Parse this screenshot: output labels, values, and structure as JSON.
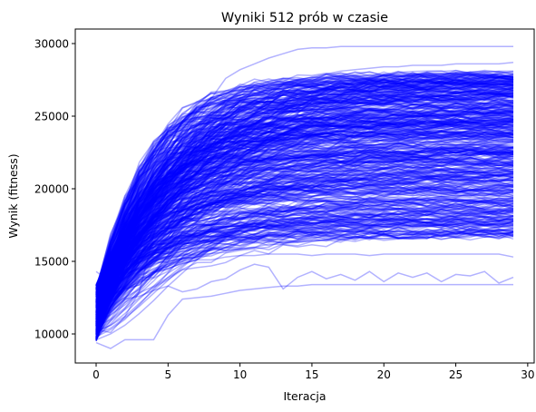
{
  "chart_data": {
    "type": "line",
    "title": "Wyniki 512 prób w czasie",
    "xlabel": "Iteracja",
    "ylabel": "Wynik (fitness)",
    "xlim": [
      -1.45,
      30.45
    ],
    "ylim": [
      8000,
      31000
    ],
    "x_ticks": [
      0,
      5,
      10,
      15,
      20,
      25,
      30
    ],
    "y_ticks": [
      10000,
      15000,
      20000,
      25000,
      30000
    ],
    "x_tick_labels": [
      "0",
      "5",
      "10",
      "15",
      "20",
      "25",
      "30"
    ],
    "y_tick_labels": [
      "10000",
      "15000",
      "20000",
      "25000",
      "30000"
    ],
    "x": [
      0,
      1,
      2,
      3,
      4,
      5,
      6,
      7,
      8,
      9,
      10,
      11,
      12,
      13,
      14,
      15,
      16,
      17,
      18,
      19,
      20,
      21,
      22,
      23,
      24,
      25,
      26,
      27,
      28,
      29
    ],
    "line_color": "#0000ff",
    "line_alpha": 0.3,
    "legend": "none",
    "grid": false,
    "series_count": 512,
    "series_final_value_range": [
      13400,
      29800
    ],
    "series_start_value_range": [
      9100,
      14400
    ],
    "series": [
      {
        "values": [
          10300,
          10100,
          11200,
          12900,
          16800,
          21600,
          23200,
          25200,
          26200,
          27600,
          28200,
          28600,
          29000,
          29300,
          29600,
          29700,
          29700,
          29800,
          29800,
          29800,
          29800,
          29800,
          29800,
          29800,
          29800,
          29800,
          29800,
          29800,
          29800,
          29800
        ]
      },
      {
        "values": [
          9400,
          9000,
          9600,
          9600,
          9600,
          11300,
          12400,
          12500,
          12600,
          12800,
          13000,
          13100,
          13200,
          13300,
          13300,
          13400,
          13400,
          13400,
          13400,
          13400,
          13400,
          13400,
          13400,
          13400,
          13400,
          13400,
          13400,
          13400,
          13400,
          13400
        ]
      },
      {
        "values": [
          11200,
          11600,
          12400,
          12600,
          13000,
          13300,
          12900,
          13100,
          13600,
          13800,
          14400,
          14800,
          14600,
          13100,
          13900,
          14300,
          13800,
          14100,
          13700,
          14300,
          13600,
          14200,
          13900,
          14200,
          13600,
          14100,
          14000,
          14300,
          13500,
          13900
        ]
      },
      {
        "values": [
          10100,
          10600,
          11400,
          12400,
          13300,
          14200,
          14800,
          15100,
          15100,
          15300,
          15400,
          15400,
          15500,
          15500,
          15500,
          15400,
          15500,
          15500,
          15500,
          15400,
          15500,
          15500,
          15500,
          15500,
          15500,
          15500,
          15500,
          15500,
          15500,
          15300
        ]
      },
      {
        "values": [
          14300,
          13600,
          15100,
          16700,
          17600,
          18900,
          19900,
          21000,
          22200,
          23400,
          24300,
          25200,
          26200,
          26800,
          27200,
          27600,
          27900,
          28100,
          28200,
          28300,
          28400,
          28400,
          28500,
          28500,
          28500,
          28600,
          28600,
          28600,
          28600,
          28700
        ]
      },
      {
        "values": [
          12200,
          12500,
          13600,
          14400,
          15600,
          16900,
          18100,
          19300,
          20600,
          21800,
          22700,
          23600,
          24500,
          25300,
          25900,
          26400,
          26800,
          27100,
          27300,
          27500,
          27600,
          27700,
          27800,
          27900,
          27900,
          28000,
          28000,
          28000,
          28100,
          28100
        ]
      },
      {
        "values": [
          11000,
          11500,
          12400,
          13600,
          14800,
          16100,
          17300,
          18500,
          19600,
          20700,
          21700,
          22500,
          23200,
          23800,
          24300,
          24700,
          25100,
          25400,
          25600,
          25800,
          25900,
          26000,
          26100,
          26200,
          26200,
          26300,
          26300,
          26300,
          26400,
          26400
        ]
      },
      {
        "values": [
          10500,
          11000,
          11800,
          13000,
          14200,
          15400,
          16600,
          17700,
          18800,
          19800,
          20700,
          21500,
          22200,
          22800,
          23300,
          23700,
          24000,
          24300,
          24500,
          24700,
          24800,
          24900,
          25000,
          25000,
          25100,
          25100,
          25100,
          25200,
          25200,
          25200
        ]
      },
      {
        "values": [
          9800,
          10300,
          11000,
          12000,
          13100,
          14200,
          15300,
          16300,
          17300,
          18200,
          19000,
          19700,
          20300,
          20800,
          21200,
          21500,
          21700,
          21900,
          22000,
          22100,
          22200,
          22200,
          22300,
          22300,
          22300,
          22300,
          22300,
          22400,
          22400,
          22400
        ]
      },
      {
        "values": [
          10200,
          10600,
          11200,
          12100,
          13000,
          13900,
          14700,
          15400,
          16000,
          16500,
          16900,
          17200,
          17400,
          17600,
          17700,
          17800,
          17800,
          17900,
          17900,
          17900,
          17900,
          17900,
          17900,
          17900,
          17900,
          17900,
          17900,
          17900,
          17900,
          17900
        ]
      },
      {
        "values": [
          9600,
          10000,
          10600,
          11400,
          12300,
          13300,
          14200,
          15100,
          15900,
          16600,
          17200,
          17700,
          18100,
          18400,
          18600,
          18800,
          18900,
          19000,
          19100,
          19100,
          19200,
          19200,
          19200,
          19200,
          19200,
          19200,
          19200,
          19200,
          19200,
          19200
        ]
      },
      {
        "values": [
          11800,
          12300,
          13200,
          14300,
          15500,
          16700,
          17900,
          19000,
          20100,
          21100,
          22000,
          22800,
          23500,
          24100,
          24600,
          25000,
          25300,
          25600,
          25800,
          26000,
          26100,
          26200,
          26300,
          26300,
          26400,
          26400,
          26400,
          26500,
          26500,
          26500
        ]
      },
      {
        "values": [
          12600,
          12200,
          12900,
          13700,
          14900,
          16200,
          17500,
          18700,
          19900,
          21000,
          22000,
          22900,
          23700,
          24400,
          25000,
          25500,
          25900,
          26200,
          26500,
          26700,
          26800,
          26900,
          27000,
          27100,
          27100,
          27200,
          27200,
          27200,
          27200,
          27200
        ]
      },
      {
        "values": [
          10800,
          11300,
          12000,
          12900,
          13900,
          15000,
          16100,
          17100,
          18100,
          19000,
          19800,
          20500,
          21100,
          21600,
          22000,
          22300,
          22600,
          22800,
          22900,
          23000,
          23100,
          23100,
          23200,
          23200,
          23200,
          23200,
          23200,
          23200,
          23200,
          23200
        ]
      },
      {
        "values": [
          10000,
          10400,
          11100,
          11900,
          12800,
          13700,
          14600,
          15400,
          16100,
          16700,
          17200,
          17600,
          17900,
          18100,
          18300,
          18400,
          18500,
          18500,
          18600,
          18600,
          18600,
          18600,
          18600,
          18600,
          18600,
          18600,
          18600,
          18600,
          18600,
          18600
        ]
      }
    ]
  }
}
